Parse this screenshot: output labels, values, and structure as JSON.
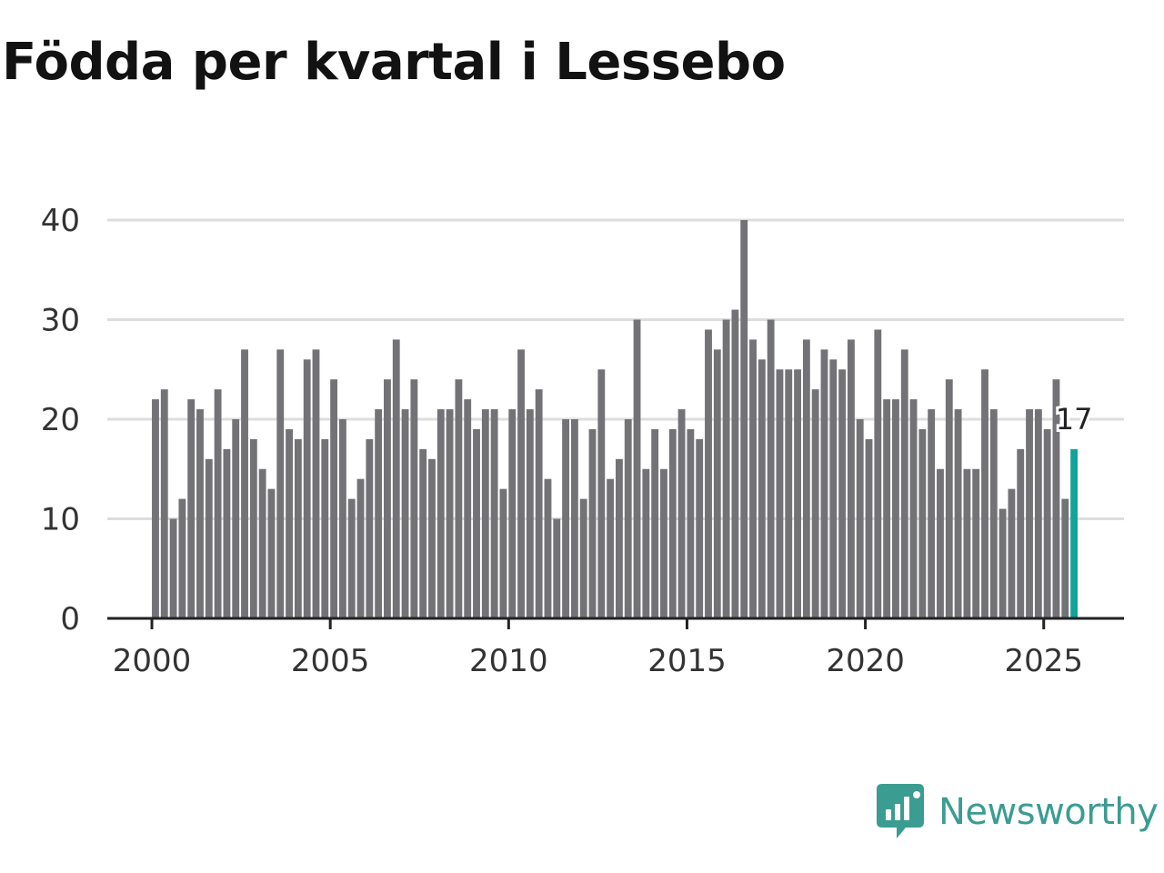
{
  "title": "Födda per kvartal i Lessebo",
  "brand": {
    "name": "Newsworthy",
    "icon": "newsworthy-logo-icon",
    "color": "#3b9c92"
  },
  "colors": {
    "bar": "#737277",
    "highlight": "#13a39b",
    "grid": "#dddddd",
    "axis": "#222222",
    "text": "#333333"
  },
  "chart_data": {
    "type": "bar",
    "title": "Födda per kvartal i Lessebo",
    "xlabel": "",
    "ylabel": "",
    "ylim": [
      0,
      40
    ],
    "yticks": [
      0,
      10,
      20,
      30,
      40
    ],
    "xticks": [
      2000,
      2005,
      2010,
      2015,
      2020,
      2025
    ],
    "xlim": [
      1998.75,
      2027.25
    ],
    "start_year": 2000,
    "values": [
      22,
      23,
      10,
      12,
      22,
      21,
      16,
      23,
      17,
      20,
      27,
      18,
      15,
      13,
      27,
      19,
      18,
      26,
      27,
      18,
      24,
      20,
      12,
      14,
      18,
      21,
      24,
      28,
      21,
      24,
      17,
      16,
      21,
      21,
      24,
      22,
      19,
      21,
      21,
      13,
      21,
      27,
      21,
      23,
      14,
      10,
      20,
      20,
      12,
      19,
      25,
      14,
      16,
      20,
      30,
      15,
      19,
      15,
      19,
      21,
      19,
      18,
      29,
      27,
      30,
      31,
      40,
      28,
      26,
      30,
      25,
      25,
      25,
      28,
      23,
      27,
      26,
      25,
      28,
      20,
      18,
      29,
      22,
      22,
      27,
      22,
      19,
      21,
      15,
      24,
      21,
      15,
      15,
      25,
      21,
      11,
      13,
      17,
      21,
      21,
      19,
      24,
      12,
      17
    ],
    "highlight_index": 103,
    "highlight_label": "17"
  }
}
